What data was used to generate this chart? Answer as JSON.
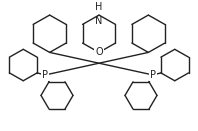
{
  "background_color": "#ffffff",
  "line_color": "#222222",
  "line_width": 1.0,
  "figsize": [
    1.98,
    1.31
  ],
  "dpi": 100,
  "xlim": [
    0,
    198
  ],
  "ylim": [
    0,
    131
  ]
}
